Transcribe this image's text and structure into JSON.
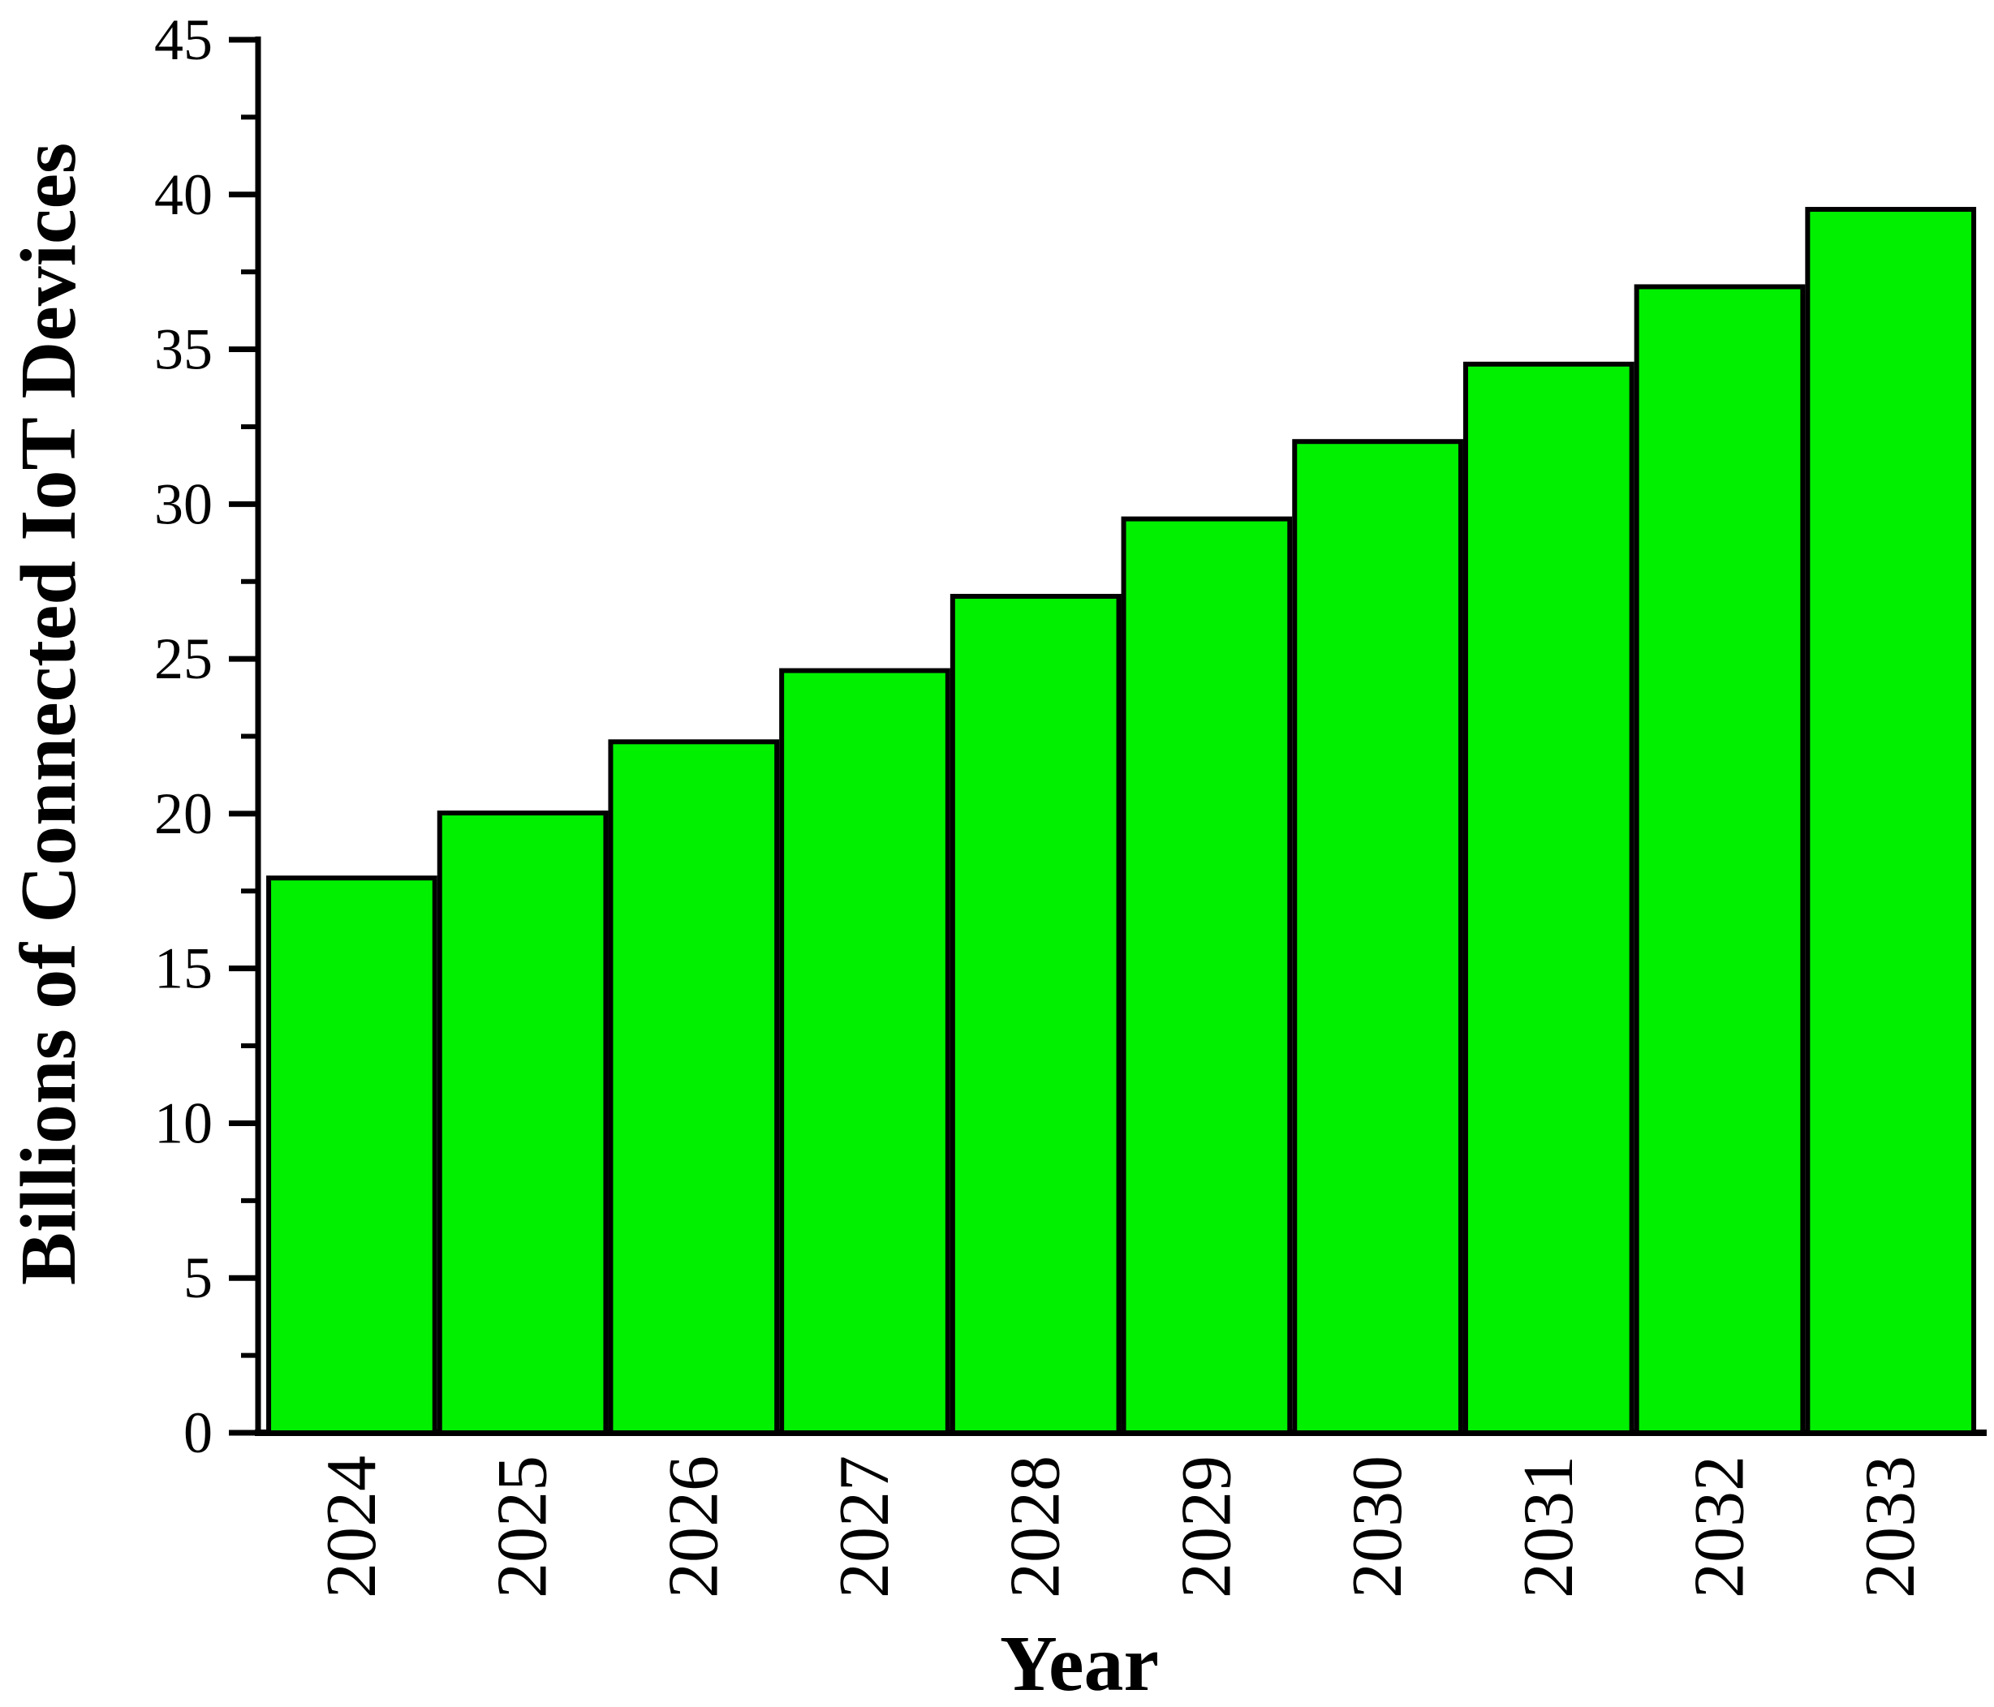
{
  "figure": {
    "background": "#ffffff"
  },
  "chart_data": {
    "type": "bar",
    "title": "",
    "categories": [
      "2024",
      "2025",
      "2026",
      "2027",
      "2028",
      "2029",
      "2030",
      "2031",
      "2032",
      "2033"
    ],
    "values": [
      18.0,
      20.1,
      22.4,
      24.7,
      27.1,
      29.6,
      32.1,
      34.6,
      37.1,
      39.6
    ],
    "xlabel": "Year",
    "ylabel": "Billions of Connected IoT Devices",
    "ylim": [
      0,
      45
    ],
    "y_major_step": 5,
    "y_minor_step": 2.5,
    "y_tick_labels": [
      "0",
      "5",
      "10",
      "15",
      "20",
      "25",
      "30",
      "35",
      "40",
      "45"
    ],
    "bar_color": "#00f000",
    "bar_border_color": "#000000",
    "axis_color": "#000000",
    "grid": false,
    "legend_position": "none",
    "x_tick_label_rotation_deg": -90
  }
}
